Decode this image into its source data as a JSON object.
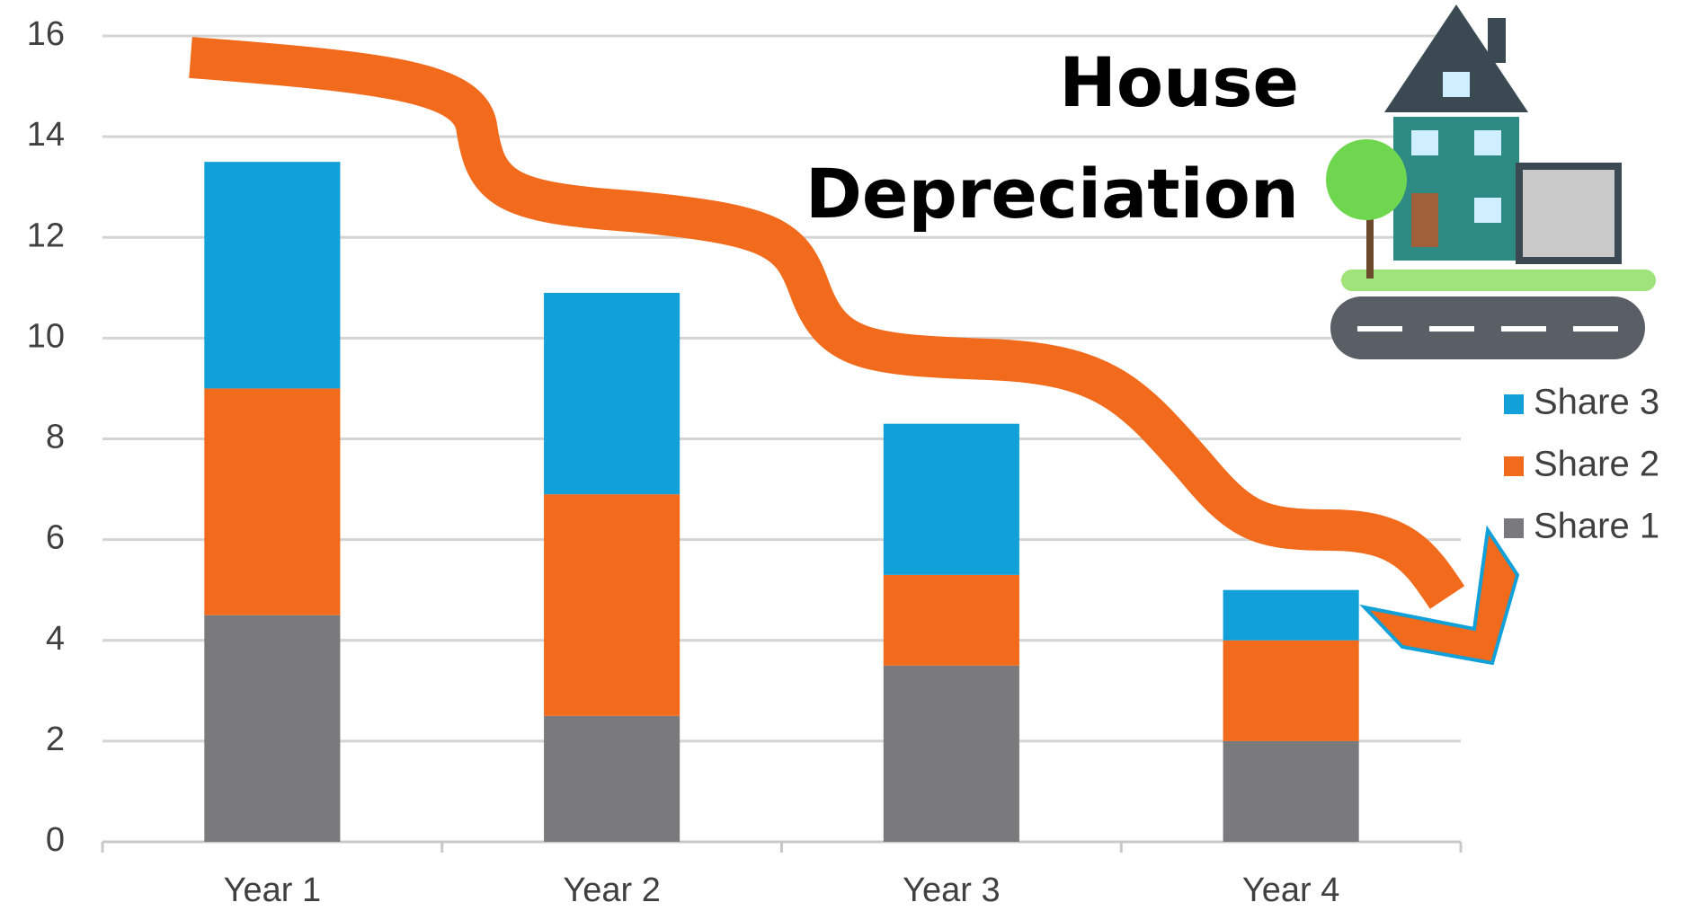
{
  "chart_data": {
    "type": "stacked-bar",
    "title": "House Depreciation",
    "categories": [
      "Year 1",
      "Year 2",
      "Year 3",
      "Year 4"
    ],
    "series": [
      {
        "name": "Share 1",
        "color": "#7a7a7c",
        "values": [
          4.5,
          2.5,
          3.5,
          2
        ]
      },
      {
        "name": "Share 2",
        "color": "#f26a1b",
        "values": [
          4.5,
          4.4,
          1.8,
          2
        ]
      },
      {
        "name": "Share 3",
        "color": "#12a0d8",
        "values": [
          4.5,
          4.0,
          3.0,
          1
        ]
      }
    ],
    "ylim": [
      0,
      16
    ],
    "yticks": [
      0,
      2,
      4,
      6,
      8,
      10,
      12,
      14,
      16
    ],
    "grid": true,
    "legend": "right"
  }
}
